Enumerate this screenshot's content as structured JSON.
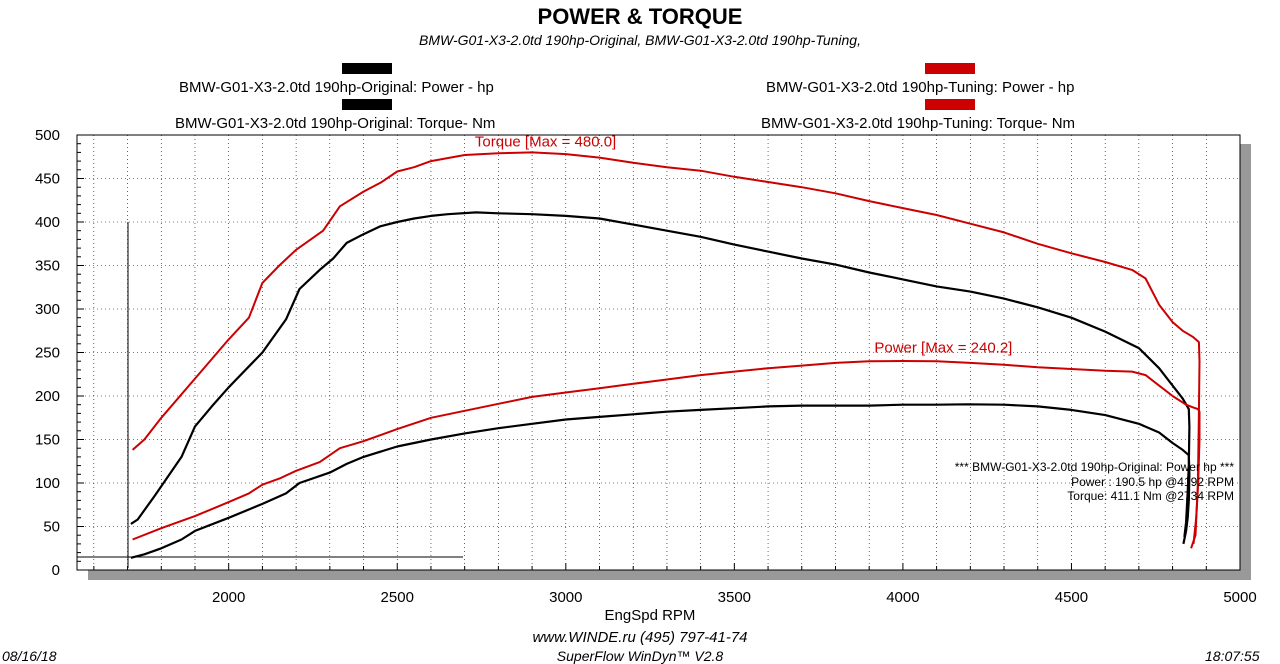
{
  "header": {
    "title": "POWER & TORQUE",
    "subtitle": "BMW-G01-X3-2.0td 190hp-Original, BMW-G01-X3-2.0td 190hp-Tuning,"
  },
  "legend": {
    "original_power": "BMW-G01-X3-2.0td 190hp-Original: Power -  hp",
    "original_torque": "BMW-G01-X3-2.0td 190hp-Original: Torque-  Nm",
    "tuning_power": "BMW-G01-X3-2.0td 190hp-Tuning: Power -  hp",
    "tuning_torque": "BMW-G01-X3-2.0td 190hp-Tuning: Torque-  Nm"
  },
  "colors": {
    "original": "#000000",
    "tuning": "#cc0000",
    "plot_shadow": "#999999"
  },
  "info_box": {
    "line1": "*** BMW-G01-X3-2.0td 190hp-Original: Power  hp   ***",
    "line2": "Power :   190.5 hp      @4192 RPM",
    "line3": "Torque:  411.1 Nm       @2734 RPM"
  },
  "footer": {
    "url": "www.WINDE.ru  (495) 797-41-74",
    "software": "SuperFlow WinDyn™  V2.8",
    "date": "08/16/18",
    "time": "18:07:55"
  },
  "chart_data": {
    "type": "line",
    "xlabel": "EngSpd  RPM",
    "ylabel": "",
    "xlim": [
      1550,
      5000
    ],
    "ylim": [
      0,
      500
    ],
    "x_ticks": [
      2000,
      2500,
      3000,
      3500,
      4000,
      4500,
      5000
    ],
    "y_ticks": [
      0,
      50,
      100,
      150,
      200,
      250,
      300,
      350,
      400,
      450,
      500
    ],
    "grid": true,
    "annotations": [
      {
        "text": "Torque [Max = 480.0]",
        "x": 2940,
        "y": 487,
        "color": "#cc0000"
      },
      {
        "text": "Power  [Max = 240.2]",
        "x": 4120,
        "y": 250,
        "color": "#cc0000"
      }
    ],
    "series": [
      {
        "name": "BMW-G01-X3-2.0td 190hp-Tuning: Torque-  Nm",
        "color": "#cc0000",
        "points": [
          [
            1715,
            138
          ],
          [
            1750,
            150
          ],
          [
            1800,
            175
          ],
          [
            1900,
            220
          ],
          [
            2000,
            265
          ],
          [
            2060,
            290
          ],
          [
            2100,
            330
          ],
          [
            2150,
            350
          ],
          [
            2200,
            368
          ],
          [
            2280,
            390
          ],
          [
            2330,
            418
          ],
          [
            2400,
            435
          ],
          [
            2450,
            445
          ],
          [
            2500,
            458
          ],
          [
            2550,
            463
          ],
          [
            2600,
            470
          ],
          [
            2700,
            477
          ],
          [
            2800,
            479
          ],
          [
            2900,
            480
          ],
          [
            3000,
            478
          ],
          [
            3100,
            474
          ],
          [
            3200,
            468
          ],
          [
            3300,
            463
          ],
          [
            3400,
            459
          ],
          [
            3500,
            452
          ],
          [
            3600,
            446
          ],
          [
            3700,
            440
          ],
          [
            3800,
            433
          ],
          [
            3900,
            424
          ],
          [
            4000,
            416
          ],
          [
            4100,
            408
          ],
          [
            4200,
            398
          ],
          [
            4300,
            388
          ],
          [
            4400,
            375
          ],
          [
            4500,
            364
          ],
          [
            4600,
            354
          ],
          [
            4680,
            345
          ],
          [
            4720,
            335
          ],
          [
            4760,
            305
          ],
          [
            4800,
            285
          ],
          [
            4830,
            275
          ],
          [
            4860,
            268
          ],
          [
            4878,
            262
          ],
          [
            4880,
            240
          ],
          [
            4878,
            180
          ],
          [
            4875,
            100
          ],
          [
            4868,
            40
          ],
          [
            4855,
            25
          ]
        ]
      },
      {
        "name": "BMW-G01-X3-2.0td 190hp-Original: Torque-  Nm",
        "color": "#000000",
        "points": [
          [
            1710,
            53
          ],
          [
            1730,
            58
          ],
          [
            1780,
            85
          ],
          [
            1860,
            130
          ],
          [
            1900,
            165
          ],
          [
            1950,
            188
          ],
          [
            2000,
            210
          ],
          [
            2100,
            250
          ],
          [
            2170,
            288
          ],
          [
            2210,
            323
          ],
          [
            2270,
            345
          ],
          [
            2310,
            358
          ],
          [
            2350,
            376
          ],
          [
            2400,
            386
          ],
          [
            2450,
            395
          ],
          [
            2500,
            400
          ],
          [
            2550,
            404
          ],
          [
            2600,
            407
          ],
          [
            2650,
            409
          ],
          [
            2734,
            411
          ],
          [
            2800,
            410
          ],
          [
            2900,
            409
          ],
          [
            3000,
            407
          ],
          [
            3100,
            404
          ],
          [
            3200,
            397
          ],
          [
            3300,
            390
          ],
          [
            3400,
            383
          ],
          [
            3500,
            374
          ],
          [
            3600,
            366
          ],
          [
            3700,
            358
          ],
          [
            3800,
            351
          ],
          [
            3900,
            342
          ],
          [
            4000,
            334
          ],
          [
            4100,
            326
          ],
          [
            4200,
            320
          ],
          [
            4300,
            312
          ],
          [
            4400,
            302
          ],
          [
            4500,
            290
          ],
          [
            4600,
            274
          ],
          [
            4700,
            255
          ],
          [
            4760,
            232
          ],
          [
            4800,
            212
          ],
          [
            4830,
            197
          ],
          [
            4848,
            185
          ],
          [
            4850,
            165
          ],
          [
            4848,
            120
          ],
          [
            4845,
            90
          ],
          [
            4840,
            55
          ],
          [
            4835,
            38
          ]
        ]
      },
      {
        "name": "BMW-G01-X3-2.0td 190hp-Tuning: Power -  hp",
        "color": "#cc0000",
        "points": [
          [
            1715,
            35
          ],
          [
            1800,
            48
          ],
          [
            1900,
            62
          ],
          [
            2000,
            78
          ],
          [
            2060,
            88
          ],
          [
            2100,
            98
          ],
          [
            2150,
            105
          ],
          [
            2200,
            114
          ],
          [
            2270,
            124
          ],
          [
            2330,
            140
          ],
          [
            2400,
            148
          ],
          [
            2500,
            162
          ],
          [
            2600,
            175
          ],
          [
            2700,
            183
          ],
          [
            2800,
            191
          ],
          [
            2900,
            199
          ],
          [
            3000,
            204
          ],
          [
            3100,
            209
          ],
          [
            3200,
            214
          ],
          [
            3300,
            219
          ],
          [
            3400,
            224
          ],
          [
            3500,
            228
          ],
          [
            3600,
            232
          ],
          [
            3700,
            235
          ],
          [
            3800,
            238
          ],
          [
            3900,
            240
          ],
          [
            4000,
            240.2
          ],
          [
            4100,
            240
          ],
          [
            4200,
            238
          ],
          [
            4300,
            236
          ],
          [
            4400,
            233
          ],
          [
            4500,
            231
          ],
          [
            4600,
            229
          ],
          [
            4680,
            228
          ],
          [
            4720,
            224
          ],
          [
            4760,
            212
          ],
          [
            4800,
            200
          ],
          [
            4840,
            190
          ],
          [
            4860,
            187
          ],
          [
            4875,
            185
          ],
          [
            4880,
            182
          ],
          [
            4880,
            150
          ],
          [
            4876,
            100
          ],
          [
            4870,
            60
          ],
          [
            4862,
            30
          ]
        ]
      },
      {
        "name": "BMW-G01-X3-2.0td 190hp-Original: Power -  hp",
        "color": "#000000",
        "points": [
          [
            1710,
            14
          ],
          [
            1750,
            18
          ],
          [
            1800,
            25
          ],
          [
            1860,
            35
          ],
          [
            1900,
            45
          ],
          [
            2000,
            60
          ],
          [
            2100,
            76
          ],
          [
            2170,
            88
          ],
          [
            2210,
            100
          ],
          [
            2300,
            112
          ],
          [
            2350,
            122
          ],
          [
            2400,
            130
          ],
          [
            2500,
            142
          ],
          [
            2600,
            150
          ],
          [
            2700,
            157
          ],
          [
            2800,
            163
          ],
          [
            2900,
            168
          ],
          [
            3000,
            173
          ],
          [
            3100,
            176
          ],
          [
            3200,
            179
          ],
          [
            3300,
            182
          ],
          [
            3400,
            184
          ],
          [
            3500,
            186
          ],
          [
            3600,
            188
          ],
          [
            3700,
            189
          ],
          [
            3800,
            189
          ],
          [
            3900,
            189
          ],
          [
            4000,
            190
          ],
          [
            4100,
            190
          ],
          [
            4192,
            190.5
          ],
          [
            4300,
            190
          ],
          [
            4400,
            188
          ],
          [
            4500,
            184
          ],
          [
            4600,
            178
          ],
          [
            4700,
            168
          ],
          [
            4760,
            158
          ],
          [
            4800,
            146
          ],
          [
            4830,
            138
          ],
          [
            4848,
            132
          ],
          [
            4850,
            110
          ],
          [
            4848,
            80
          ],
          [
            4845,
            60
          ],
          [
            4840,
            45
          ],
          [
            4832,
            30
          ]
        ]
      }
    ]
  }
}
